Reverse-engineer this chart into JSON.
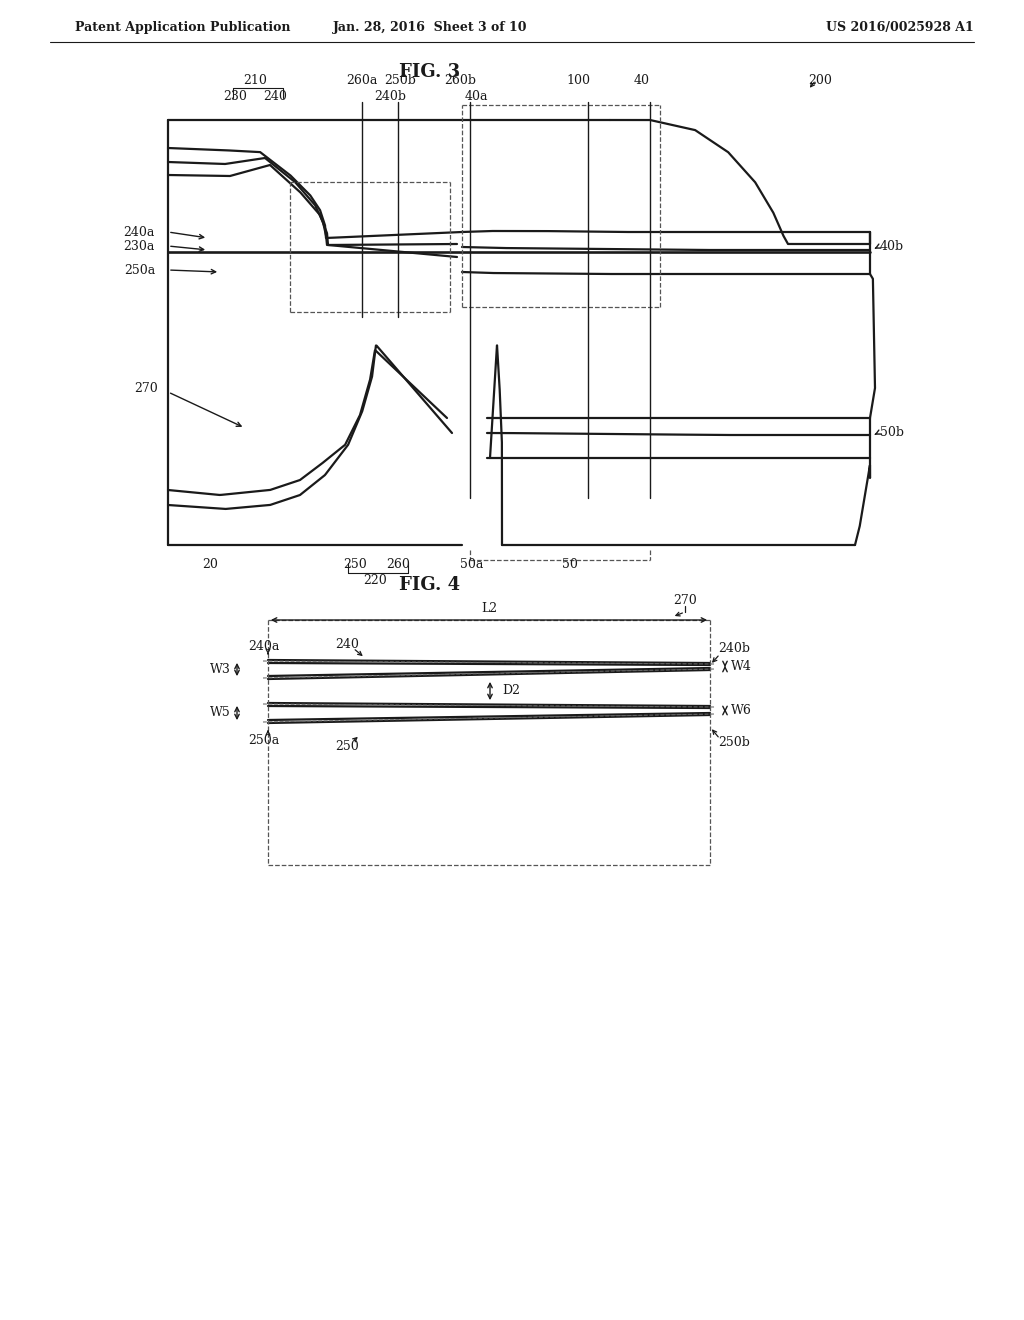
{
  "header_left": "Patent Application Publication",
  "header_mid": "Jan. 28, 2016  Sheet 3 of 10",
  "header_right": "US 2016/0025928 A1",
  "fig3_title": "FIG. 3",
  "fig4_title": "FIG. 4",
  "bg_color": "#ffffff",
  "line_color": "#1a1a1a"
}
